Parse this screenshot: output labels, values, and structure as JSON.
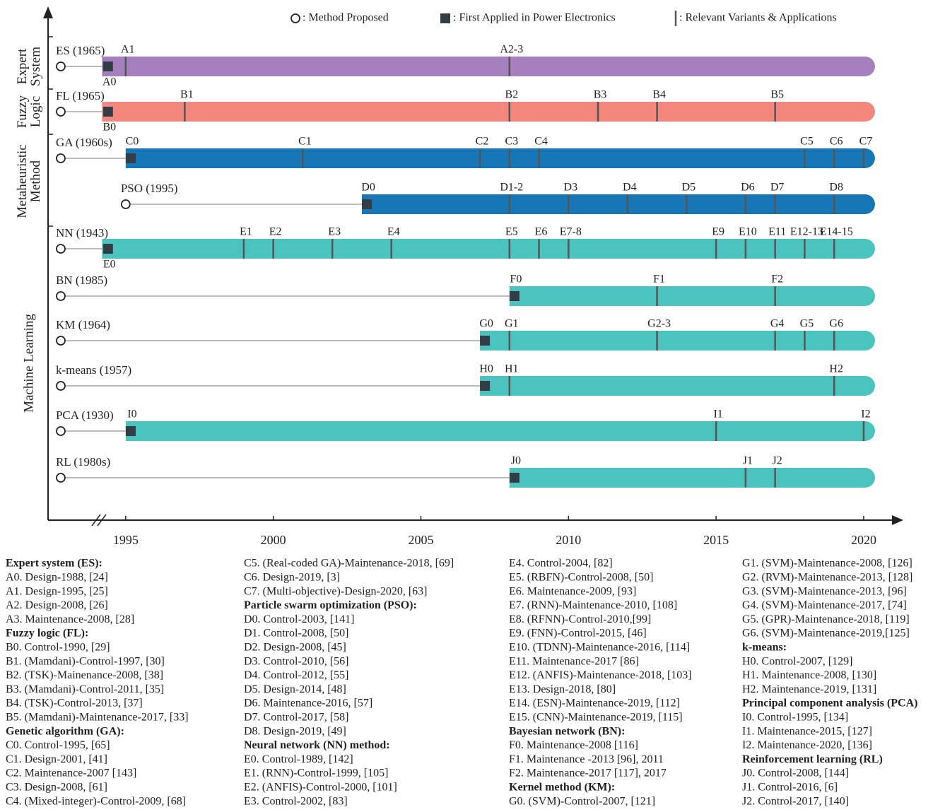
{
  "chart_data": {
    "type": "timeline",
    "legend": {
      "proposed": ": Method Proposed",
      "first": ": First Applied in Power Electronics",
      "variant": ": Relevant Variants & Applications"
    },
    "xlim": [
      1992.37,
      2021.27
    ],
    "xticks": [
      1995,
      2000,
      2005,
      2010,
      2015,
      2020
    ],
    "groups": [
      {
        "lines": [
          "Expert",
          "System"
        ],
        "rows": [
          {
            "label": "ES (1965)",
            "proposed": 1992.8,
            "start": 1994.2,
            "color": "#a67fbe",
            "first": {
              "label": "A0",
              "x": 1994.4
            },
            "marks": [
              {
                "label": "A1",
                "x": 1995
              },
              {
                "label": "A2-3",
                "x": 2008
              }
            ]
          }
        ]
      },
      {
        "lines": [
          "Fuzzy",
          "Logic"
        ],
        "rows": [
          {
            "label": "FL (1965)",
            "proposed": 1992.8,
            "start": 1994.2,
            "color": "#f4877d",
            "first": {
              "label": "B0",
              "x": 1994.4
            },
            "marks": [
              {
                "label": "B1",
                "x": 1997
              },
              {
                "label": "B2",
                "x": 2008
              },
              {
                "label": "B3",
                "x": 2011
              },
              {
                "label": "B4",
                "x": 2013
              },
              {
                "label": "B5",
                "x": 2017
              }
            ]
          }
        ]
      },
      {
        "lines": [
          "Metaheuristic",
          "Method"
        ],
        "rows": [
          {
            "label": "GA (1960s)",
            "proposed": 1992.8,
            "start": 1995,
            "color": "#1776b6",
            "first": {
              "label": "C0",
              "x": 1995.17
            },
            "marks": [
              {
                "label": "C1",
                "x": 2001
              },
              {
                "label": "C2",
                "x": 2007
              },
              {
                "label": "C3",
                "x": 2008
              },
              {
                "label": "C4",
                "x": 2009
              },
              {
                "label": "C5",
                "x": 2018
              },
              {
                "label": "C6",
                "x": 2019
              },
              {
                "label": "C7",
                "x": 2020
              }
            ]
          },
          {
            "label": "PSO (1995)",
            "proposed": 1995,
            "start": 2003,
            "color": "#1776b6",
            "first": {
              "label": "D0",
              "x": 2003.17
            },
            "marks": [
              {
                "label": "D1-2",
                "x": 2008
              },
              {
                "label": "D3",
                "x": 2010
              },
              {
                "label": "D4",
                "x": 2012
              },
              {
                "label": "D5",
                "x": 2014
              },
              {
                "label": "D6",
                "x": 2016
              },
              {
                "label": "D7",
                "x": 2017
              },
              {
                "label": "D8",
                "x": 2019
              }
            ]
          }
        ]
      },
      {
        "lines": [
          "Machine Learning"
        ],
        "rows": [
          {
            "label": "NN (1943)",
            "proposed": 1992.8,
            "start": 1994.2,
            "color": "#4bc4bf",
            "first": {
              "label": "E0",
              "x": 1994.4
            },
            "marks": [
              {
                "label": "E1",
                "x": 1999
              },
              {
                "label": "E2",
                "x": 2000
              },
              {
                "label": "E3",
                "x": 2002
              },
              {
                "label": "E4",
                "x": 2004
              },
              {
                "label": "E5",
                "x": 2008
              },
              {
                "label": "E6",
                "x": 2009
              },
              {
                "label": "E7-8",
                "x": 2010
              },
              {
                "label": "E9",
                "x": 2015
              },
              {
                "label": "E10",
                "x": 2016
              },
              {
                "label": "E11",
                "x": 2017
              },
              {
                "label": "E12-13",
                "x": 2018
              },
              {
                "label": "E14-15",
                "x": 2019
              }
            ]
          },
          {
            "label": "BN (1985)",
            "proposed": 1992.8,
            "start": 2008,
            "color": "#4bc4bf",
            "first": {
              "label": "F0",
              "x": 2008.17
            },
            "marks": [
              {
                "label": "F1",
                "x": 2013
              },
              {
                "label": "F2",
                "x": 2017
              }
            ]
          },
          {
            "label": "KM (1964)",
            "proposed": 1992.8,
            "start": 2007,
            "color": "#4bc4bf",
            "first": {
              "label": "G0",
              "x": 2007.17
            },
            "marks": [
              {
                "label": "G1",
                "x": 2008
              },
              {
                "label": "G2-3",
                "x": 2013
              },
              {
                "label": "G4",
                "x": 2017
              },
              {
                "label": "G5",
                "x": 2018
              },
              {
                "label": "G6",
                "x": 2019
              }
            ]
          },
          {
            "label": "k-means (1957)",
            "proposed": 1992.8,
            "start": 2007,
            "color": "#4bc4bf",
            "first": {
              "label": "H0",
              "x": 2007.17
            },
            "marks": [
              {
                "label": "H1",
                "x": 2008
              },
              {
                "label": "H2",
                "x": 2019
              }
            ]
          },
          {
            "label": "PCA (1930)",
            "proposed": 1992.8,
            "start": 1995,
            "color": "#4bc4bf",
            "first": {
              "label": "I0",
              "x": 1995.17
            },
            "marks": [
              {
                "label": "I1",
                "x": 2015
              },
              {
                "label": "I2",
                "x": 2020
              }
            ]
          },
          {
            "label": "RL (1980s)",
            "proposed": 1992.8,
            "start": 2008,
            "color": "#4bc4bf",
            "first": {
              "label": "J0",
              "x": 2008.17
            },
            "marks": [
              {
                "label": "J1",
                "x": 2016
              },
              {
                "label": "J2",
                "x": 2017
              }
            ]
          }
        ]
      }
    ],
    "notes": [
      [
        {
          "text": "Expert system (ES):",
          "bold": true
        },
        "A0. Design-1988, [24]",
        "A1. Design-1995, [25]",
        "A2. Design-2008, [26]",
        "A3. Maintenance-2008, [28]",
        {
          "text": "Fuzzy logic (FL):",
          "bold": true
        },
        "B0. Control-1990, [29]",
        "B1. (Mamdani)-Control-1997, [30]",
        "B2. (TSK)-Mainenance-2008, [38]",
        "B3. (Mamdani)-Control-2011, [35]",
        "B4. (TSK)-Control-2013, [37]",
        "B5. (Mamdani)-Maintenance-2017, [33]",
        {
          "text": "Genetic algorithm (GA):",
          "bold": true
        },
        "C0. Control-1995, [65]",
        "C1. Design-2001, [41]",
        "C2. Maintenance-2007 [143]",
        "C3. Design-2008, [61]",
        "C4. (Mixed-integer)-Control-2009, [68]"
      ],
      [
        "C5. (Real-coded GA)-Maintenance-2018, [69]",
        "C6. Design-2019, [3]",
        "C7. (Multi-objective)-Design-2020, [63]",
        {
          "text": "Particle swarm optimization (PSO):",
          "bold": true
        },
        "D0. Control-2003, [141]",
        "D1. Control-2008, [50]",
        "D2. Design-2008, [45]",
        "D3. Control-2010, [56]",
        "D4. Control-2012, [55]",
        "D5. Design-2014, [48]",
        "D6. Maintenance-2016, [57]",
        "D7. Control-2017, [58]",
        "D8. Design-2019, [49]",
        {
          "text": "Neural network (NN) method:",
          "bold": true
        },
        "E0. Control-1989, [142]",
        "E1. (RNN)-Control-1999, [105]",
        "E2. (ANFIS)-Control-2000, [101]",
        "E3. Control-2002, [83]"
      ],
      [
        "E4. Control-2004, [82]",
        "E5. (RBFN)-Control-2008, [50]",
        "E6. Maintenance-2009, [93]",
        "E7. (RNN)-Maintenance-2010, [108]",
        "E8. (RFNN)-Control-2010,[99]",
        "E9. (FNN)-Control-2015, [46]",
        "E10. (TDNN)-Maintenance-2016, [114]",
        "E11. Maintenance-2017 [86]",
        "E12. (ANFIS)-Maintenance-2018, [103]",
        "E13. Design-2018, [80]",
        "E14. (ESN)-Maintenance-2019, [112]",
        "E15. (CNN)-Maintenance-2019, [115]",
        {
          "text": "Bayesian network (BN):",
          "bold": true
        },
        "F0. Maintenance-2008 [116]",
        "F1. Maintenance -2013 [96], 2011",
        "F2. Maintenance-2017 [117], 2017",
        {
          "text": "Kernel method (KM):",
          "bold": true
        },
        "G0. (SVM)-Control-2007, [121]"
      ],
      [
        "G1. (SVM)-Maintenance-2008, [126]",
        "G2. (RVM)-Maintenance-2013, [128]",
        "G3. (SVM)-Maintenance-2013, [96]",
        "G4. (SVM)-Maintenance-2017, [74]",
        "G5. (GPR)-Maintenance-2018, [119]",
        "G6. (SVM)-Maintenance-2019,[125]",
        {
          "text": "k-means:",
          "bold": true
        },
        "H0. Control-2007, [129]",
        "H1. Maintenance-2008, [130]",
        "H2. Maintenance-2019, [131]",
        {
          "text": "Principal component analysis (PCA)",
          "bold": true
        },
        "I0. Control-1995, [134]",
        "I1. Maintenance-2015, [127]",
        "I2. Maintenance-2020, [136]",
        {
          "text": "Reinforcement learning (RL)",
          "bold": true
        },
        "J0. Control-2008, [144]",
        "J1. Control-2016, [6]",
        "J2. Control-2017, [140]"
      ]
    ]
  }
}
